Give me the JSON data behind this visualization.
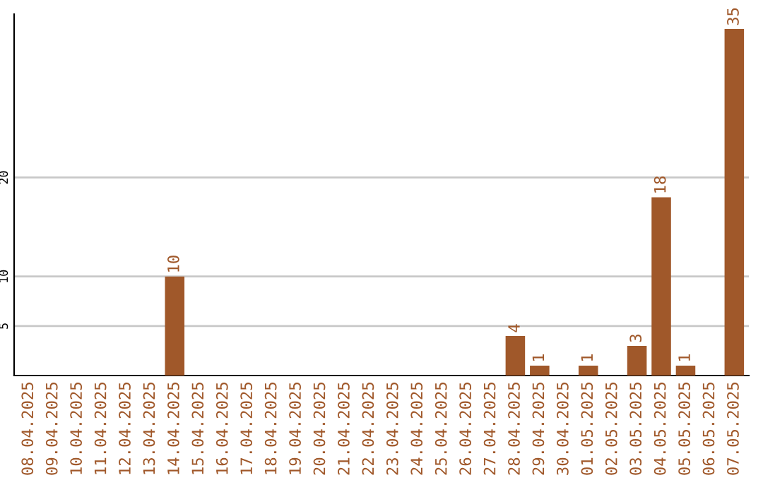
{
  "chart_data": {
    "type": "bar",
    "categories": [
      "08.04.2025",
      "09.04.2025",
      "10.04.2025",
      "11.04.2025",
      "12.04.2025",
      "13.04.2025",
      "14.04.2025",
      "15.04.2025",
      "16.04.2025",
      "17.04.2025",
      "18.04.2025",
      "19.04.2025",
      "20.04.2025",
      "21.04.2025",
      "22.04.2025",
      "23.04.2025",
      "24.04.2025",
      "25.04.2025",
      "26.04.2025",
      "27.04.2025",
      "28.04.2025",
      "29.04.2025",
      "30.04.2025",
      "01.05.2025",
      "02.05.2025",
      "03.05.2025",
      "04.05.2025",
      "05.05.2025",
      "06.05.2025",
      "07.05.2025"
    ],
    "values": [
      0,
      0,
      0,
      0,
      0,
      0,
      10,
      0,
      0,
      0,
      0,
      0,
      0,
      0,
      0,
      0,
      0,
      0,
      0,
      0,
      4,
      1,
      0,
      1,
      0,
      3,
      18,
      1,
      0,
      35
    ],
    "value_labels": [
      null,
      null,
      null,
      null,
      null,
      null,
      "10",
      null,
      null,
      null,
      null,
      null,
      null,
      null,
      null,
      null,
      null,
      null,
      null,
      null,
      "4",
      "1",
      null,
      "1",
      null,
      "3",
      "18",
      "1",
      null,
      "35"
    ],
    "color": "#a0582a",
    "ylim": [
      0,
      36.5
    ],
    "yticks": [
      5,
      10,
      20
    ],
    "grid": "y",
    "legend": false
  }
}
